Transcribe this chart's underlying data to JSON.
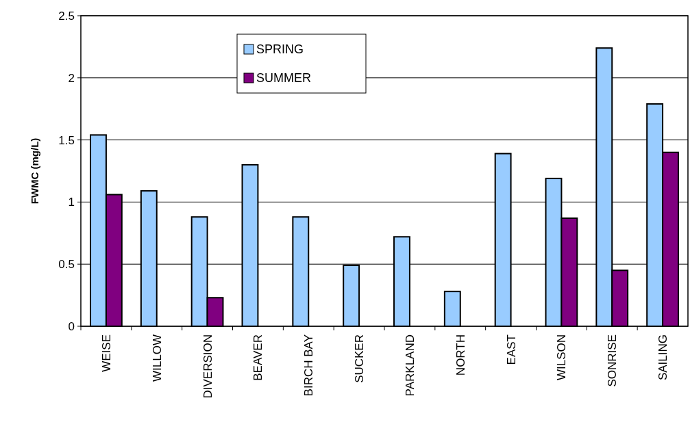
{
  "chart_data": {
    "type": "bar",
    "ylabel": "FWMC (mg/L)",
    "categories": [
      "WEISE",
      "WILLOW",
      "DIVERSION",
      "BEAVER",
      "BIRCH BAY",
      "SUCKER",
      "PARKLAND",
      "NORTH",
      "EAST",
      "WILSON",
      "SONRISE",
      "SAILING"
    ],
    "series": [
      {
        "name": "SPRING",
        "color": "#99ccff",
        "values": [
          1.54,
          1.09,
          0.88,
          1.3,
          0.88,
          0.49,
          0.72,
          0.28,
          1.39,
          1.19,
          2.24,
          1.79
        ]
      },
      {
        "name": "SUMMER",
        "color": "#800080",
        "values": [
          1.06,
          null,
          0.23,
          null,
          null,
          null,
          null,
          null,
          null,
          0.87,
          0.45,
          1.4
        ]
      }
    ],
    "ylim": [
      0,
      2.5
    ],
    "yticks": [
      0,
      0.5,
      1,
      1.5,
      2,
      2.5
    ],
    "grid": "y",
    "legend": "top"
  }
}
